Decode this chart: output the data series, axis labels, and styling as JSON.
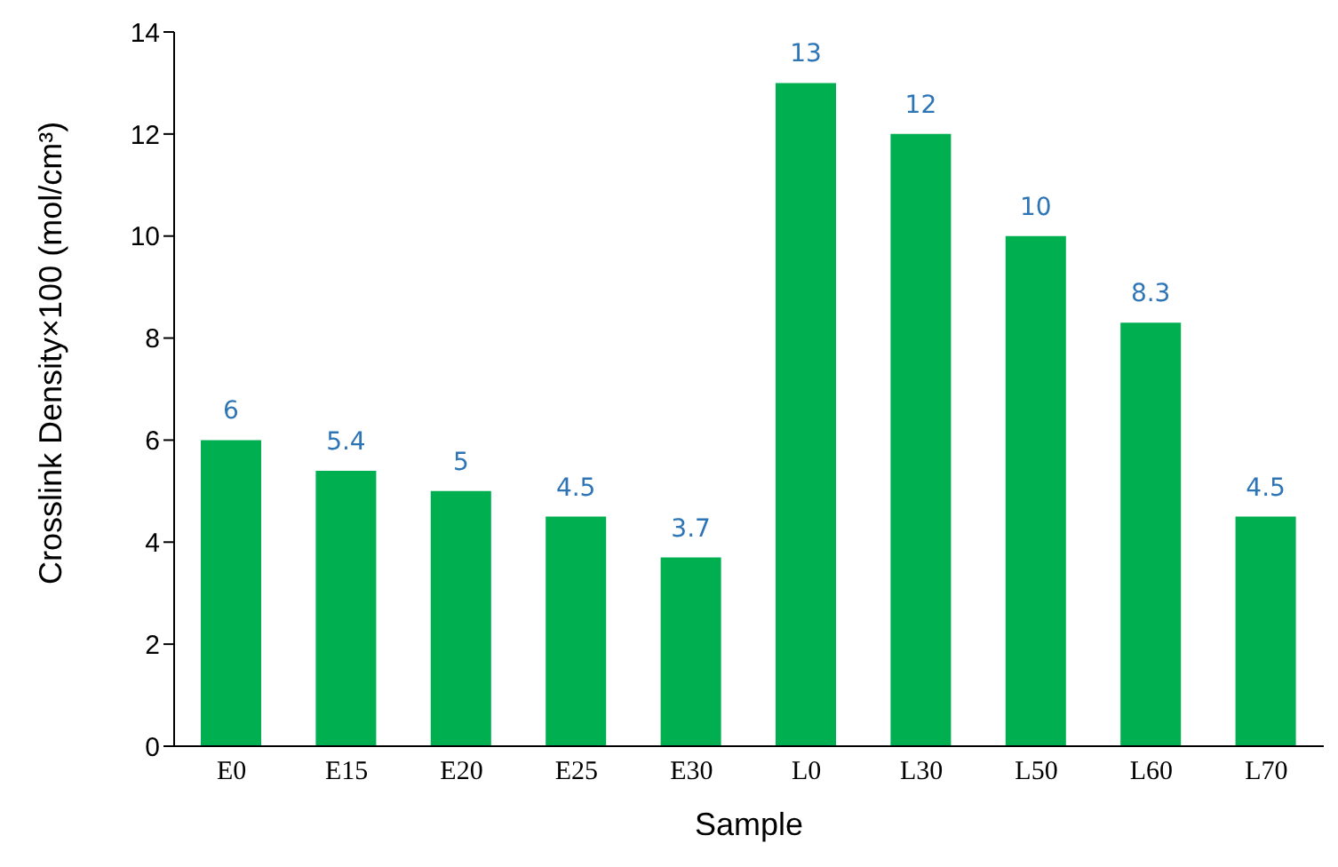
{
  "chart_data": {
    "type": "bar",
    "xlabel": "Sample",
    "ylabel": "Crosslink Density×100 (mol/cm³)",
    "categories": [
      "E0",
      "E15",
      "E20",
      "E25",
      "E30",
      "L0",
      "L30",
      "L50",
      "L60",
      "L70"
    ],
    "values": [
      6,
      5.4,
      5,
      4.5,
      3.7,
      13,
      12,
      10,
      8.3,
      4.5
    ],
    "color": "#00b050",
    "ylim": [
      0,
      14
    ],
    "yticks": [
      0,
      2,
      4,
      6,
      8,
      10,
      12,
      14
    ],
    "grid": false,
    "data_labels": true
  }
}
